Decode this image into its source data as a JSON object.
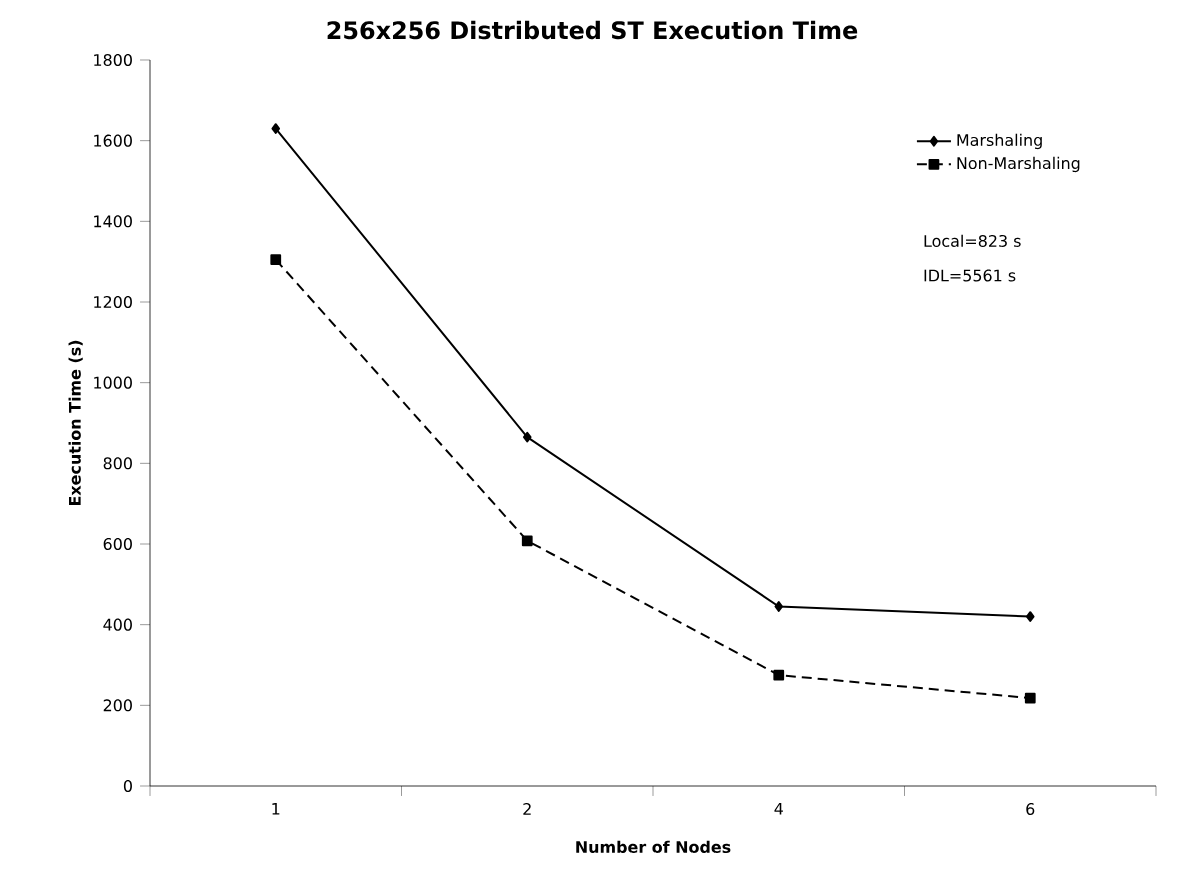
{
  "chart_data": {
    "type": "line",
    "title": "256x256 Distributed ST Execution Time",
    "xlabel": "Number of Nodes",
    "ylabel": "Execution Time (s)",
    "categories": [
      "1",
      "2",
      "4",
      "6"
    ],
    "series": [
      {
        "name": "Marshaling",
        "color": "#000000",
        "values": [
          1630,
          865,
          445,
          420
        ],
        "marker": "diamond",
        "line_style": "solid"
      },
      {
        "name": "Non-Marshaling",
        "color": "#000000",
        "values": [
          1305,
          608,
          275,
          218
        ],
        "marker": "square",
        "line_style": "dashed"
      }
    ],
    "ylim": [
      0,
      1800
    ],
    "yticks": [
      0,
      200,
      400,
      600,
      800,
      1000,
      1200,
      1400,
      1600,
      1800
    ],
    "grid": false,
    "legend": "top right",
    "annotations": [
      "Local=823 s",
      "IDL=5561 s"
    ]
  }
}
